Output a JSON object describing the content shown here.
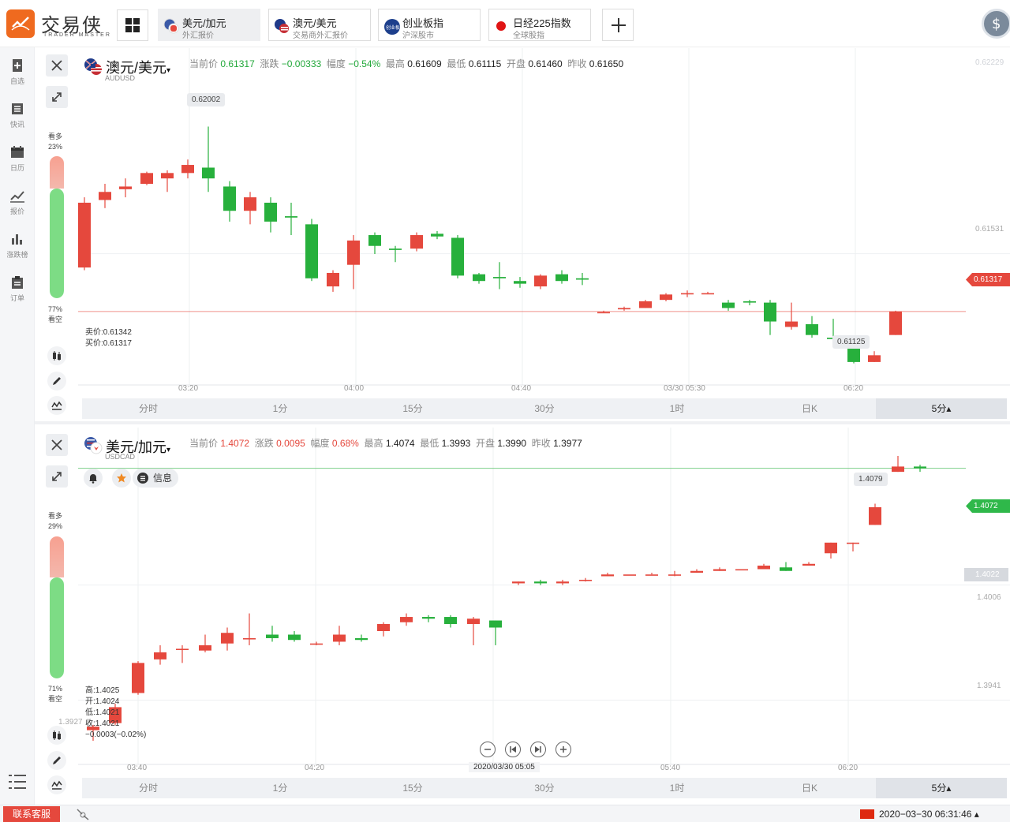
{
  "app": {
    "logo_text": "交易侠",
    "logo_sub": "TRADER MASTER",
    "brand_color": "#ef6a1f"
  },
  "tabs": [
    {
      "title": "美元/加元",
      "sub": "外汇报价",
      "active": true
    },
    {
      "title": "澳元/美元",
      "sub": "交易商外汇报价",
      "active": false
    },
    {
      "title": "创业板指",
      "sub": "沪深股市",
      "active": false
    },
    {
      "title": "日经225指数",
      "sub": "全球股指",
      "active": false
    }
  ],
  "sidebar": {
    "items": [
      {
        "label": "自选",
        "icon": "bookmark-plus-icon"
      },
      {
        "label": "快讯",
        "icon": "news-list-icon"
      },
      {
        "label": "日历",
        "icon": "calendar-icon"
      },
      {
        "label": "报价",
        "icon": "line-chart-icon"
      },
      {
        "label": "涨跌榜",
        "icon": "bar-chart-icon"
      },
      {
        "label": "订单",
        "icon": "clipboard-icon"
      }
    ]
  },
  "panel1": {
    "symbol": "澳元/美元",
    "code": "AUDUSD",
    "quote": {
      "last_label": "当前价",
      "last": "0.61317",
      "change_label": "涨跌",
      "change": "−0.00333",
      "pct_label": "幅度",
      "pct": "−0.54%",
      "high_label": "最高",
      "high": "0.61609",
      "low_label": "最低",
      "low": "0.61115",
      "open_label": "开盘",
      "open": "0.61460",
      "prev_label": "昨收",
      "prev": "0.61650"
    },
    "sentiment": {
      "bull_label": "看多",
      "bull_pct": "23%",
      "bear_label": "看空",
      "bear_pct": "77%",
      "bull": 0.23
    },
    "bid_ask": {
      "sell": "卖价:0.61342",
      "buy": "买价:0.61317"
    },
    "y_labels": [
      "0.62229",
      "0.61531"
    ],
    "last_tag": "0.61317",
    "high_bubble": "0.62002",
    "low_bubble": "0.61125",
    "x_labels": [
      "03:20",
      "04:00",
      "04:40",
      "03/30 05:30",
      "06:20"
    ]
  },
  "panel2": {
    "symbol": "美元/加元",
    "code": "USDCAD",
    "quote": {
      "last_label": "当前价",
      "last": "1.4072",
      "change_label": "涨跌",
      "change": "0.0095",
      "pct_label": "幅度",
      "pct": "0.68%",
      "high_label": "最高",
      "high": "1.4074",
      "low_label": "最低",
      "low": "1.3993",
      "open_label": "开盘",
      "open": "1.3990",
      "prev_label": "昨收",
      "prev": "1.3977"
    },
    "info_label": "信息",
    "sentiment": {
      "bull_label": "看多",
      "bull_pct": "29%",
      "bear_label": "看空",
      "bear_pct": "71%",
      "bull": 0.29
    },
    "ohlc": {
      "high": "高:1.4025",
      "open": "开:1.4024",
      "low": "低:1.4021",
      "close": "收:1.4021",
      "change": "−0.0003(−0.02%)"
    },
    "y_labels": [
      "1.4022",
      "1.4006",
      "1.3941",
      "1.3927"
    ],
    "last_tag": "1.4072",
    "high_bubble": "1.4079",
    "x_labels": [
      "03:40",
      "04:20",
      "05:40",
      "06:20"
    ],
    "cursor_date": "2020/03/30 05:05"
  },
  "timeframes": [
    "分时",
    "1分",
    "15分",
    "30分",
    "1时",
    "日K",
    "5分▴"
  ],
  "active_timeframe": "5分▴",
  "bottom": {
    "service": "联系客服",
    "datetime": "2020−03−30 06:31:46 ▴"
  },
  "colors": {
    "up": "#e5483d",
    "down": "#27b03c"
  },
  "chart_data": [
    {
      "type": "candlestick",
      "title": "澳元/美元",
      "series": [
        {
          "name": "AUDUSD",
          "ohlc": [
            [
              0.6148,
              0.6172,
              0.6147,
              0.6174
            ],
            [
              0.6173,
              0.6176,
              0.617,
              0.6179
            ],
            [
              0.6177,
              0.6178,
              0.6174,
              0.6181
            ],
            [
              0.6179,
              0.6183,
              0.61785,
              0.61835
            ],
            [
              0.6181,
              0.6183,
              0.6176,
              0.6184
            ],
            [
              0.6183,
              0.6186,
              0.6181,
              0.6188
            ],
            [
              0.6185,
              0.6181,
              0.6176,
              0.62002
            ],
            [
              0.6178,
              0.6169,
              0.6165,
              0.618
            ],
            [
              0.6169,
              0.6174,
              0.6164,
              0.6176
            ],
            [
              0.6172,
              0.6165,
              0.6161,
              0.6174
            ],
            [
              0.6167,
              0.61665,
              0.616,
              0.6172
            ],
            [
              0.6164,
              0.6144,
              0.6143,
              0.6166
            ],
            [
              0.6141,
              0.6146,
              0.6139,
              0.6147
            ],
            [
              0.6149,
              0.6158,
              0.614,
              0.616
            ],
            [
              0.616,
              0.6156,
              0.6153,
              0.6161
            ],
            [
              0.6155,
              0.61545,
              0.615,
              0.6156
            ],
            [
              0.6155,
              0.616,
              0.6154,
              0.6161
            ],
            [
              0.61605,
              0.61595,
              0.61585,
              0.61615
            ],
            [
              0.6159,
              0.6145,
              0.6144,
              0.616
            ],
            [
              0.61455,
              0.6143,
              0.6142,
              0.6146
            ],
            [
              0.61445,
              0.6144,
              0.614,
              0.615
            ],
            [
              0.6143,
              0.6142,
              0.61405,
              0.61445
            ],
            [
              0.6141,
              0.6145,
              0.614,
              0.61455
            ],
            [
              0.61455,
              0.6143,
              0.6142,
              0.6147
            ],
            [
              0.6144,
              0.61435,
              0.61415,
              0.6146
            ],
            [
              0.61315,
              0.61315,
              0.61315,
              0.6132
            ],
            [
              0.61325,
              0.6133,
              0.6132,
              0.61335
            ],
            [
              0.6133,
              0.61355,
              0.6133,
              0.6136
            ],
            [
              0.6136,
              0.6138,
              0.61355,
              0.61385
            ],
            [
              0.61385,
              0.61385,
              0.6137,
              0.61395
            ],
            [
              0.61385,
              0.61385,
              0.61385,
              0.6139
            ],
            [
              0.6135,
              0.6133,
              0.6132,
              0.6136
            ],
            [
              0.61355,
              0.6135,
              0.6134,
              0.6136
            ],
            [
              0.6135,
              0.6128,
              0.6123,
              0.6136
            ],
            [
              0.6126,
              0.6128,
              0.6125,
              0.6135
            ],
            [
              0.6127,
              0.6123,
              0.6122,
              0.613
            ],
            [
              0.6122,
              0.61215,
              0.612,
              0.6129
            ],
            [
              0.61205,
              0.6113,
              0.61125,
              0.6121
            ],
            [
              0.6113,
              0.61155,
              0.6113,
              0.6117
            ],
            [
              0.6123,
              0.61317,
              0.6123,
              0.6132
            ]
          ]
        }
      ],
      "ylim": [
        0.6108,
        0.6224
      ],
      "xlabel": "",
      "ylabel": ""
    },
    {
      "type": "candlestick",
      "title": "美元/加元",
      "series": [
        {
          "name": "USDCAD",
          "ohlc": [
            [
              1.3924,
              1.3926,
              1.3918,
              1.3927
            ],
            [
              1.3928,
              1.3937,
              1.3927,
              1.3939
            ],
            [
              1.3945,
              1.3962,
              1.3944,
              1.3963
            ],
            [
              1.3964,
              1.3968,
              1.3961,
              1.3972
            ],
            [
              1.397,
              1.397,
              1.3962,
              1.3972
            ],
            [
              1.3969,
              1.3972,
              1.3968,
              1.3978
            ],
            [
              1.3973,
              1.3979,
              1.3969,
              1.3982
            ],
            [
              1.3976,
              1.3976,
              1.3972,
              1.399
            ],
            [
              1.3978,
              1.3976,
              1.3974,
              1.3983
            ],
            [
              1.3978,
              1.3975,
              1.3974,
              1.398
            ],
            [
              1.3973,
              1.3973,
              1.3972,
              1.3974
            ],
            [
              1.3974,
              1.3978,
              1.3972,
              1.3983
            ],
            [
              1.3976,
              1.3975,
              1.3974,
              1.3978
            ],
            [
              1.398,
              1.3984,
              1.3977,
              1.3985
            ],
            [
              1.3985,
              1.3988,
              1.3983,
              1.399
            ],
            [
              1.3988,
              1.3987,
              1.3985,
              1.3989
            ],
            [
              1.3988,
              1.3984,
              1.3982,
              1.3989
            ],
            [
              1.3984,
              1.3987,
              1.3972,
              1.3988
            ],
            [
              1.3986,
              1.3982,
              1.3972,
              1.3986
            ],
            [
              1.4007,
              1.4008,
              1.4006,
              1.4008
            ],
            [
              1.4008,
              1.4007,
              1.4006,
              1.4009
            ],
            [
              1.4007,
              1.4008,
              1.4006,
              1.4009
            ],
            [
              1.4009,
              1.4009,
              1.4008,
              1.401
            ],
            [
              1.4011,
              1.4012,
              1.4011,
              1.4013
            ],
            [
              1.4012,
              1.4012,
              1.4012,
              1.4012
            ],
            [
              1.4012,
              1.4012,
              1.4012,
              1.4013
            ],
            [
              1.4012,
              1.4012,
              1.4011,
              1.4014
            ],
            [
              1.4013,
              1.4014,
              1.4013,
              1.4015
            ],
            [
              1.4014,
              1.4015,
              1.4014,
              1.4016
            ],
            [
              1.4015,
              1.4015,
              1.4015,
              1.4015
            ],
            [
              1.4015,
              1.4017,
              1.4015,
              1.4018
            ],
            [
              1.4016,
              1.4014,
              1.4014,
              1.4019
            ],
            [
              1.4017,
              1.4018,
              1.4017,
              1.4019
            ],
            [
              1.4024,
              1.403,
              1.4021,
              1.403
            ],
            [
              1.403,
              1.403,
              1.4025,
              1.403
            ],
            [
              1.404,
              1.405,
              1.404,
              1.4052
            ],
            [
              1.407,
              1.4073,
              1.407,
              1.4079
            ],
            [
              1.4073,
              1.4072,
              1.407,
              1.4074
            ]
          ]
        }
      ],
      "ylim": [
        1.391,
        1.4087
      ],
      "xlabel": "",
      "ylabel": ""
    }
  ]
}
